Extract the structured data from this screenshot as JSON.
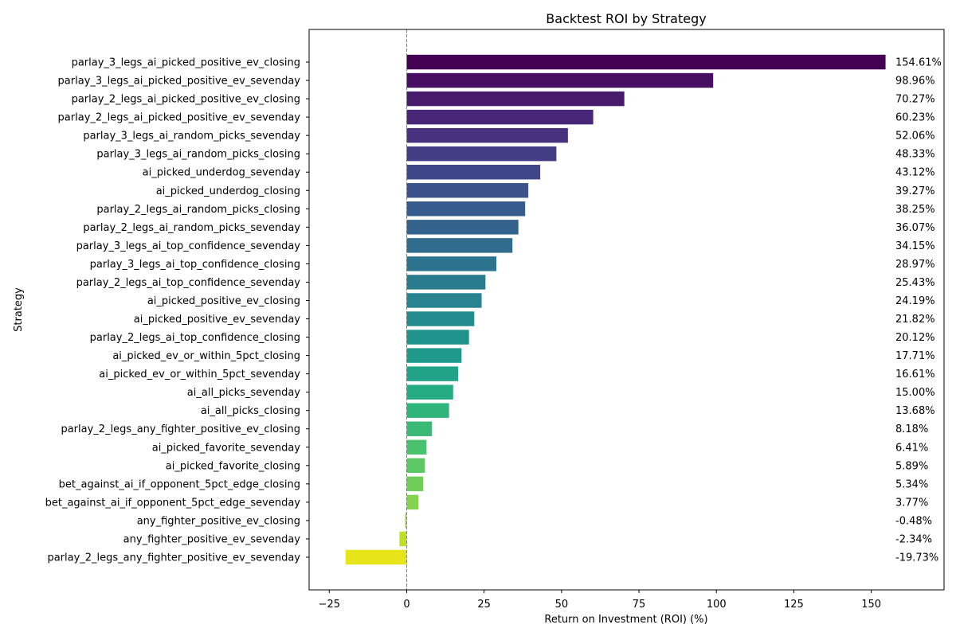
{
  "chart_data": {
    "type": "bar",
    "orientation": "horizontal",
    "title": "Backtest ROI by Strategy",
    "xlabel": "Return on Investment (ROI) (%)",
    "ylabel": "Strategy",
    "xlim": [
      -31.5,
      173.5
    ],
    "xticks": [
      -25,
      0,
      25,
      50,
      75,
      100,
      125,
      150
    ],
    "grid": false,
    "reference_line": {
      "x": 0,
      "style": "dashed",
      "color": "#808080"
    },
    "categories": [
      "parlay_3_legs_ai_picked_positive_ev_closing",
      "parlay_3_legs_ai_picked_positive_ev_sevenday",
      "parlay_2_legs_ai_picked_positive_ev_closing",
      "parlay_2_legs_ai_picked_positive_ev_sevenday",
      "parlay_3_legs_ai_random_picks_sevenday",
      "parlay_3_legs_ai_random_picks_closing",
      "ai_picked_underdog_sevenday",
      "ai_picked_underdog_closing",
      "parlay_2_legs_ai_random_picks_closing",
      "parlay_2_legs_ai_random_picks_sevenday",
      "parlay_3_legs_ai_top_confidence_sevenday",
      "parlay_3_legs_ai_top_confidence_closing",
      "parlay_2_legs_ai_top_confidence_sevenday",
      "ai_picked_positive_ev_closing",
      "ai_picked_positive_ev_sevenday",
      "parlay_2_legs_ai_top_confidence_closing",
      "ai_picked_ev_or_within_5pct_closing",
      "ai_picked_ev_or_within_5pct_sevenday",
      "ai_all_picks_sevenday",
      "ai_all_picks_closing",
      "parlay_2_legs_any_fighter_positive_ev_closing",
      "ai_picked_favorite_sevenday",
      "ai_picked_favorite_closing",
      "bet_against_ai_if_opponent_5pct_edge_closing",
      "bet_against_ai_if_opponent_5pct_edge_sevenday",
      "any_fighter_positive_ev_closing",
      "any_fighter_positive_ev_sevenday",
      "parlay_2_legs_any_fighter_positive_ev_sevenday"
    ],
    "values": [
      154.61,
      98.96,
      70.27,
      60.23,
      52.06,
      48.33,
      43.12,
      39.27,
      38.25,
      36.07,
      34.15,
      28.97,
      25.43,
      24.19,
      21.82,
      20.12,
      17.71,
      16.61,
      15.0,
      13.68,
      8.18,
      6.41,
      5.89,
      5.34,
      3.77,
      -0.48,
      -2.34,
      -19.73
    ],
    "value_labels": [
      "154.61%",
      "98.96%",
      "70.27%",
      "60.23%",
      "52.06%",
      "48.33%",
      "43.12%",
      "39.27%",
      "38.25%",
      "36.07%",
      "34.15%",
      "28.97%",
      "25.43%",
      "24.19%",
      "21.82%",
      "20.12%",
      "17.71%",
      "16.61%",
      "15.00%",
      "13.68%",
      "8.18%",
      "6.41%",
      "5.89%",
      "5.34%",
      "3.77%",
      "-0.48%",
      "-2.34%",
      "-19.73%"
    ],
    "colors": [
      "#440154",
      "#470e61",
      "#481b6d",
      "#482677",
      "#46327e",
      "#433d84",
      "#3f4788",
      "#3b528b",
      "#375b8d",
      "#33638d",
      "#2f6c8e",
      "#2c748e",
      "#297b8e",
      "#26838f",
      "#238b8d",
      "#20928c",
      "#1f9a8a",
      "#20a386",
      "#25ab82",
      "#2fb47c",
      "#3aba76",
      "#4ac16d",
      "#5cc863",
      "#6ece58",
      "#82d34d",
      "#98d83e",
      "#bddf26",
      "#e7e419"
    ]
  }
}
